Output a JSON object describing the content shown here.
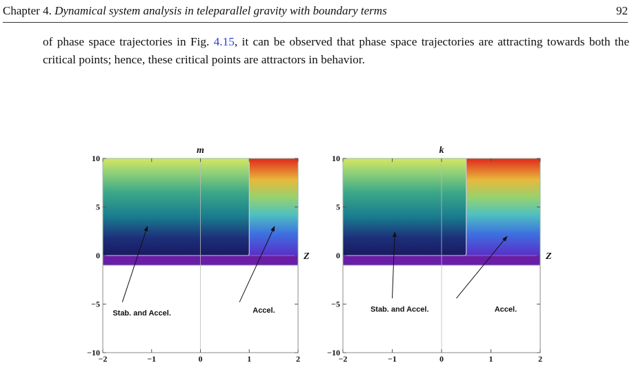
{
  "header": {
    "chapter_prefix": "Chapter 4.",
    "chapter_title": "Dynamical system analysis in teleparallel gravity with boundary terms",
    "page_number": "92"
  },
  "paragraph": {
    "part1": "of phase space trajectories in Fig. ",
    "ref": "4.15",
    "part2": ", it can be observed that phase space trajectories are attracting towards both the critical points; hence, these critical points are attractors in behavior."
  },
  "colors": {
    "reference": "#2b3fd0",
    "band": "#6a1ea8"
  },
  "chart_data": [
    {
      "type": "region",
      "title": "m",
      "axis_label": "Z",
      "xlim": [
        -2,
        2
      ],
      "ylim": [
        -10,
        10
      ],
      "x_ticks": [
        "−2",
        "−1",
        "0",
        "1",
        "2"
      ],
      "y_ticks": [
        "10",
        "5",
        "0",
        "−5",
        "−10"
      ],
      "regions": [
        {
          "label": "Stab. and Accel.",
          "x_range": [
            -2,
            1.0
          ],
          "y_range": [
            -1,
            10
          ]
        },
        {
          "label": "Accel.",
          "x_range": [
            1.0,
            2
          ],
          "y_range": [
            -1,
            10
          ]
        }
      ]
    },
    {
      "type": "region",
      "title": "k",
      "axis_label": "Z",
      "xlim": [
        -2,
        2
      ],
      "ylim": [
        -10,
        10
      ],
      "x_ticks": [
        "−2",
        "−1",
        "0",
        "1",
        "2"
      ],
      "y_ticks": [
        "10",
        "5",
        "0",
        "−5",
        "−10"
      ],
      "regions": [
        {
          "label": "Stab. and Accel.",
          "x_range": [
            -2,
            0.5
          ],
          "y_range": [
            -1,
            10
          ]
        },
        {
          "label": "Accel.",
          "x_range": [
            0.5,
            2
          ],
          "y_range": [
            -1,
            10
          ]
        }
      ]
    }
  ]
}
